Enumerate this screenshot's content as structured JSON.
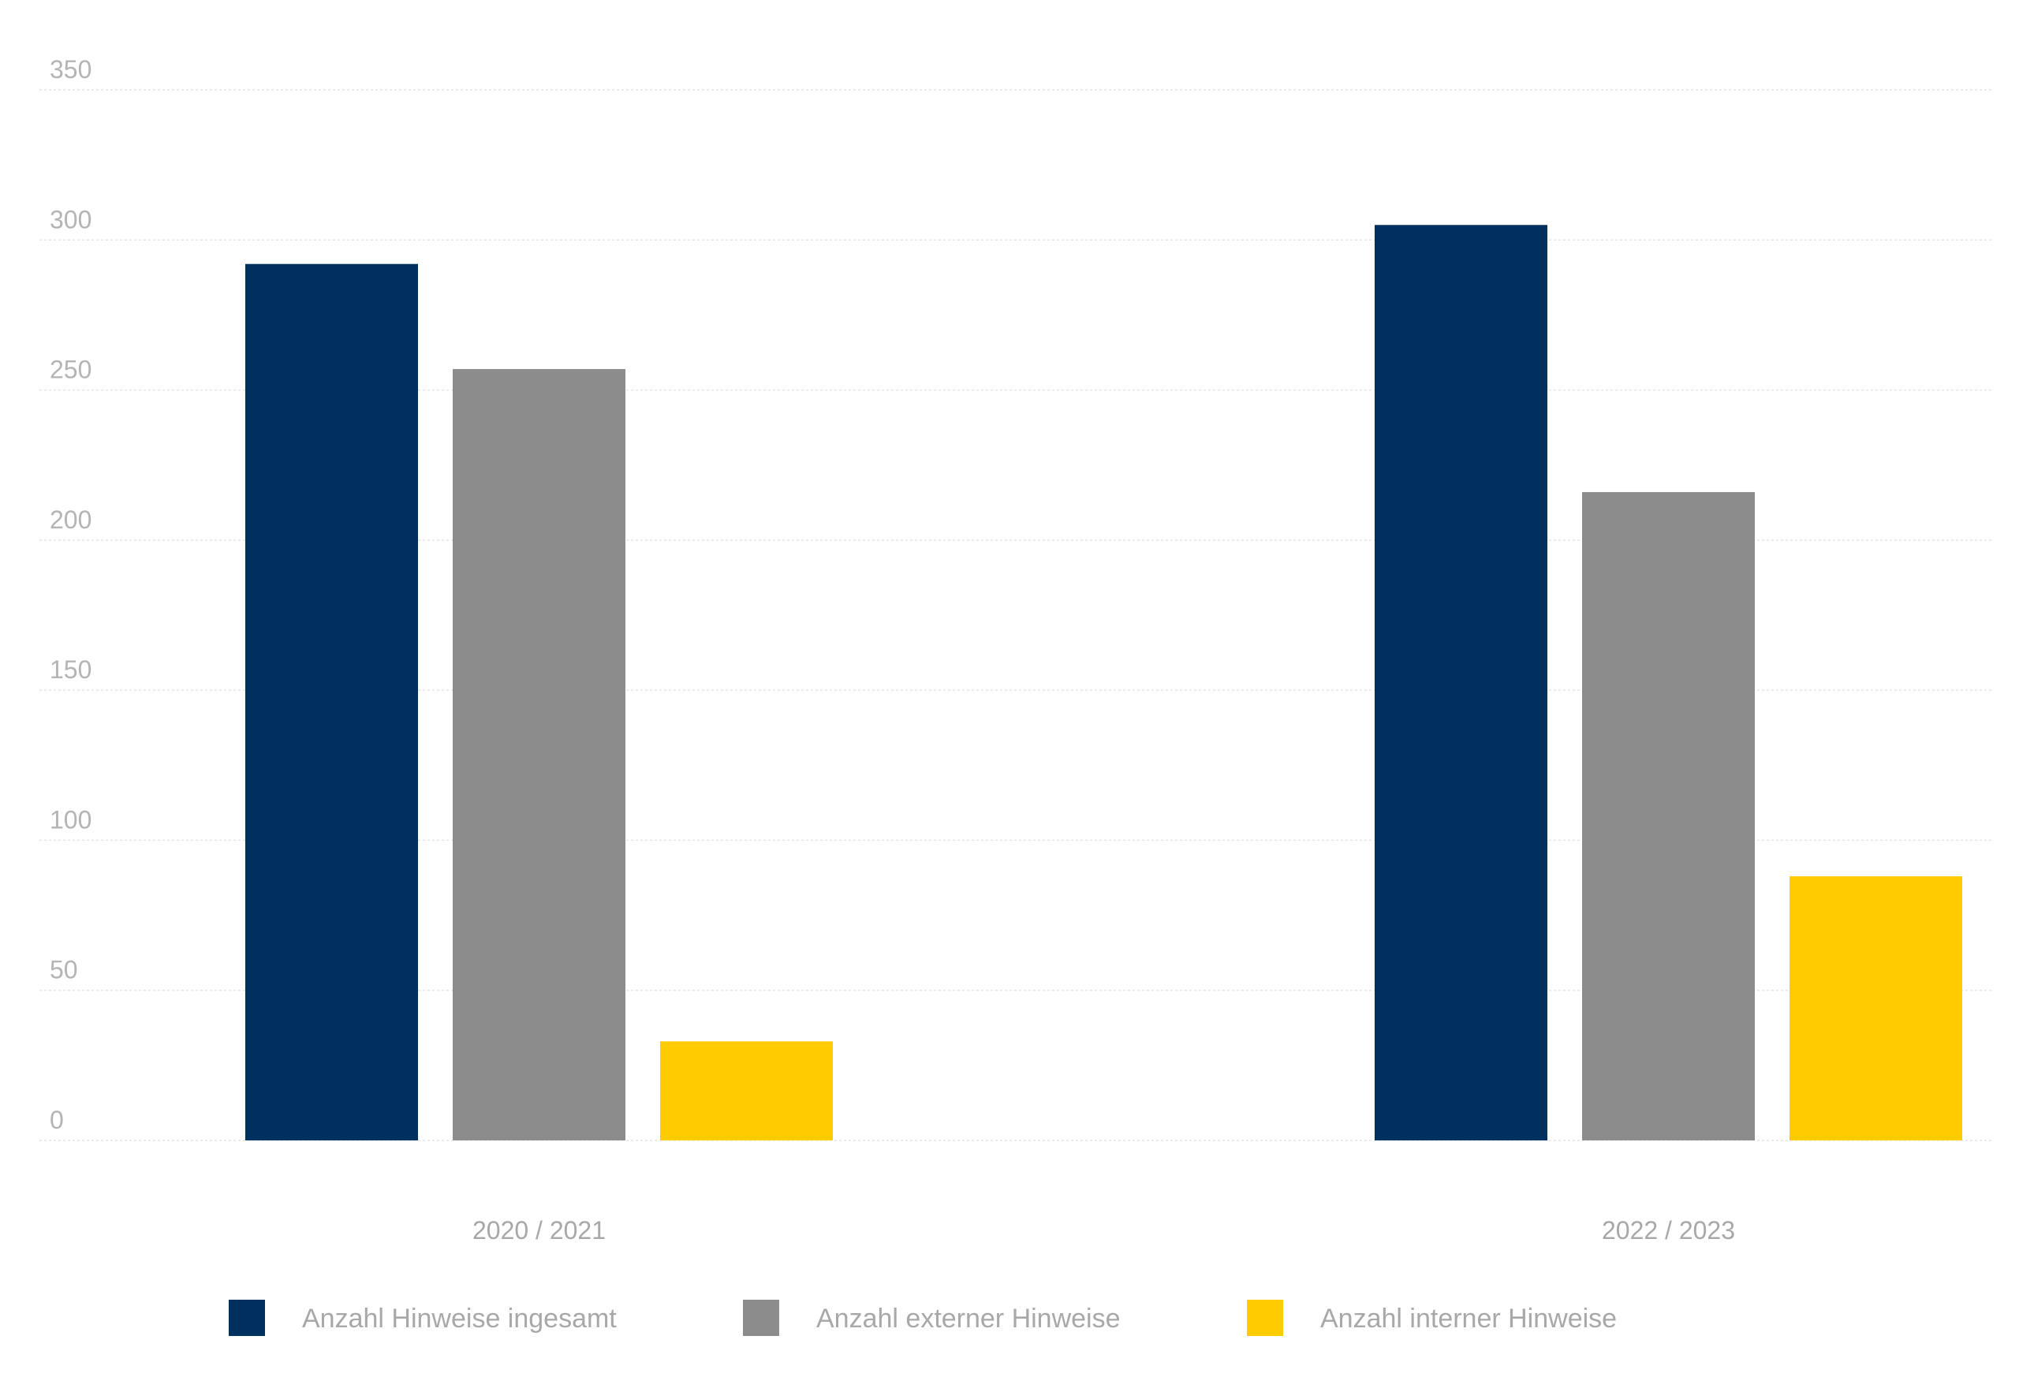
{
  "chart_data": {
    "type": "bar",
    "categories": [
      "2020 / 2021",
      "2022 / 2023"
    ],
    "series": [
      {
        "name": "Anzahl Hinweise ingesamt",
        "color": "#00305e",
        "values": [
          292,
          305
        ]
      },
      {
        "name": "Anzahl externer Hinweise",
        "color": "#8c8c8c",
        "values": [
          257,
          216
        ]
      },
      {
        "name": "Anzahl interner Hinweise",
        "color": "#ffcc00",
        "values": [
          33,
          88
        ]
      }
    ],
    "ylim": [
      0,
      350
    ],
    "yticks": [
      0,
      50,
      100,
      150,
      200,
      250,
      300,
      350
    ],
    "grid": true,
    "legend_position": "bottom",
    "title": "",
    "xlabel": "",
    "ylabel": ""
  }
}
